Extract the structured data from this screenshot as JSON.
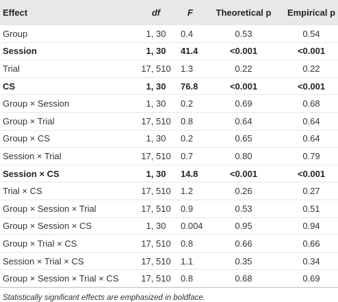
{
  "table": {
    "headers": {
      "effect": "Effect",
      "df": "df",
      "f": "F",
      "theoretical_p": "Theoretical p",
      "empirical_p": "Empirical p"
    },
    "rows": [
      {
        "effect": "Group",
        "df": "1, 30",
        "f": "0.4",
        "theoretical_p": "0.53",
        "empirical_p": "0.54",
        "significant": false
      },
      {
        "effect": "Session",
        "df": "1, 30",
        "f": "41.4",
        "theoretical_p": "<0.001",
        "empirical_p": "<0.001",
        "significant": true
      },
      {
        "effect": "Trial",
        "df": "17, 510",
        "f": "1.3",
        "theoretical_p": "0.22",
        "empirical_p": "0.22",
        "significant": false
      },
      {
        "effect": "CS",
        "df": "1, 30",
        "f": "76.8",
        "theoretical_p": "<0.001",
        "empirical_p": "<0.001",
        "significant": true
      },
      {
        "effect": "Group × Session",
        "df": "1, 30",
        "f": "0.2",
        "theoretical_p": "0.69",
        "empirical_p": "0.68",
        "significant": false
      },
      {
        "effect": "Group × Trial",
        "df": "17, 510",
        "f": "0.8",
        "theoretical_p": "0.64",
        "empirical_p": "0.64",
        "significant": false
      },
      {
        "effect": "Group × CS",
        "df": "1, 30",
        "f": "0.2",
        "theoretical_p": "0.65",
        "empirical_p": "0.64",
        "significant": false
      },
      {
        "effect": "Session × Trial",
        "df": "17, 510",
        "f": "0.7",
        "theoretical_p": "0.80",
        "empirical_p": "0.79",
        "significant": false
      },
      {
        "effect": "Session × CS",
        "df": "1, 30",
        "f": "14.8",
        "theoretical_p": "<0.001",
        "empirical_p": "<0.001",
        "significant": true
      },
      {
        "effect": "Trial × CS",
        "df": "17, 510",
        "f": "1.2",
        "theoretical_p": "0.26",
        "empirical_p": "0.27",
        "significant": false
      },
      {
        "effect": "Group × Session × Trial",
        "df": "17, 510",
        "f": "0.9",
        "theoretical_p": "0.53",
        "empirical_p": "0.51",
        "significant": false
      },
      {
        "effect": "Group × Session × CS",
        "df": "1, 30",
        "f": "0.004",
        "theoretical_p": "0.95",
        "empirical_p": "0.94",
        "significant": false
      },
      {
        "effect": "Group × Trial × CS",
        "df": "17, 510",
        "f": "0.8",
        "theoretical_p": "0.66",
        "empirical_p": "0.66",
        "significant": false
      },
      {
        "effect": "Session × Trial × CS",
        "df": "17, 510",
        "f": "1.1",
        "theoretical_p": "0.35",
        "empirical_p": "0.34",
        "significant": false
      },
      {
        "effect": "Group × Session × Trial × CS",
        "df": "17, 510",
        "f": "0.8",
        "theoretical_p": "0.68",
        "empirical_p": "0.69",
        "significant": false
      }
    ]
  },
  "footnote": "Statistically significant effects are emphasized in boldface.",
  "colors": {
    "header_background": "#e8e8e8",
    "text": "#333333",
    "row_divider": "#e6e6e6"
  }
}
